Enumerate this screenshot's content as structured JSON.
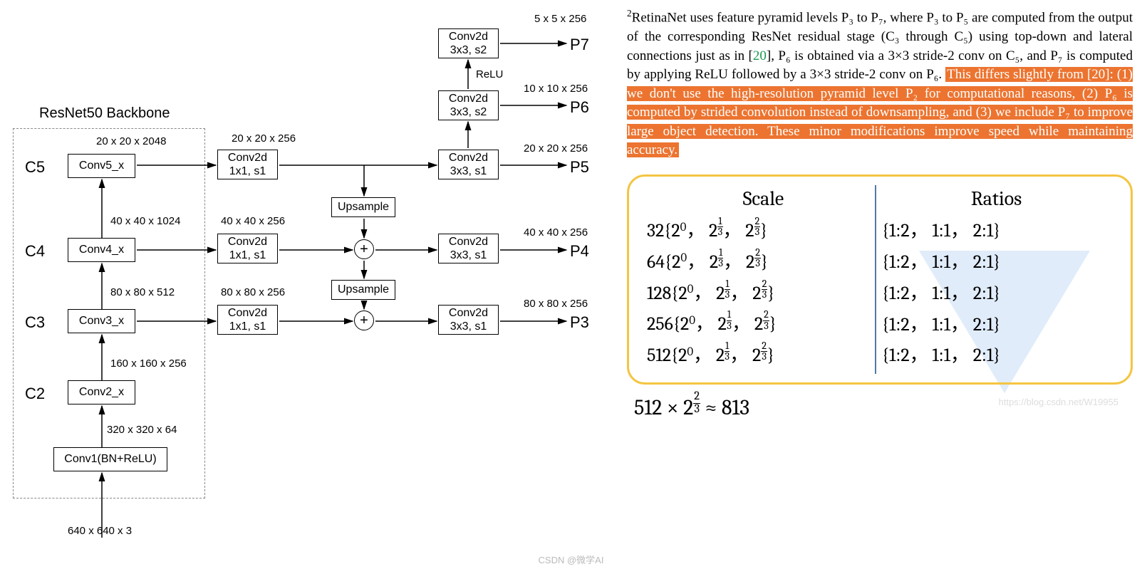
{
  "diagram": {
    "backbone_title": "ResNet50 Backbone",
    "input_dim": "640 x 640 x 3",
    "conv1": {
      "label": "Conv1(BN+ReLU)",
      "out": "320 x 320 x 64"
    },
    "c2": {
      "stage": "C2",
      "label": "Conv2_x",
      "out": "160 x 160 x 256"
    },
    "c3": {
      "stage": "C3",
      "label": "Conv3_x",
      "out": "80 x 80 x 512"
    },
    "c4": {
      "stage": "C4",
      "label": "Conv4_x",
      "out": "40 x 40 x 1024"
    },
    "c5": {
      "stage": "C5",
      "label": "Conv5_x",
      "out": "20 x 20 x 2048"
    },
    "lateral": {
      "label_l1": "Conv2d",
      "label_l2": "1x1, s1"
    },
    "lat3_out": "80 x 80 x 256",
    "lat4_out": "40 x 40 x 256",
    "lat5_out": "20 x 20 x 256",
    "upsample": "Upsample",
    "smooth": {
      "label_l1": "Conv2d",
      "label_l2": "3x3, s1"
    },
    "extra": {
      "label_l1": "Conv2d",
      "label_l2": "3x3, s2"
    },
    "relu": "ReLU",
    "p3": {
      "name": "P3",
      "dim": "80 x 80 x 256"
    },
    "p4": {
      "name": "P4",
      "dim": "40 x 40 x 256"
    },
    "p5": {
      "name": "P5",
      "dim": "20 x 20 x 256"
    },
    "p6": {
      "name": "P6",
      "dim": "10 x 10 x 256"
    },
    "p7": {
      "name": "P7",
      "dim": "5 x 5 x 256"
    },
    "colors": {
      "node_border": "#000000",
      "dashed_border": "#888888",
      "arrow": "#000000",
      "background": "#ffffff"
    }
  },
  "text": {
    "footnote_num": "2",
    "para_before": "RetinaNet uses feature pyramid levels P₃ to P₇, where P₃ to P₅ are computed from the output of the corresponding ResNet residual stage (C₃ through C₅) using top-down and lateral connections just as in [",
    "cite1": "20",
    "para_mid": "], P₆ is obtained via a 3×3 stride-2 conv on C₅, and P₇ is computed by applying ReLU followed by a 3×3 stride-2 conv on P₆. ",
    "highlight": "This differs slightly from [20]: (1) we don't use the high-resolution pyramid level P₂ for computational reasons, (2) P₆ is computed by strided convolution instead of downsampling, and (3) we include P₇ to improve large object detection. These minor modifications improve speed while maintaining accuracy.",
    "highlight_color": "#ec7430"
  },
  "table": {
    "header_scale": "Scale",
    "header_ratios": "Ratios",
    "border_color": "#f4c542",
    "divider_color": "#507aa6",
    "rows": [
      {
        "base": "32",
        "exps": [
          "0",
          "1/3",
          "2/3"
        ],
        "ratios": "{1:2，  1:1，  2:1}"
      },
      {
        "base": "64",
        "exps": [
          "0",
          "1/3",
          "2/3"
        ],
        "ratios": "{1:2，  1:1，  2:1}"
      },
      {
        "base": "128",
        "exps": [
          "0",
          "1/3",
          "2/3"
        ],
        "ratios": "{1:2，  1:1，  2:1}"
      },
      {
        "base": "256",
        "exps": [
          "0",
          "1/3",
          "2/3"
        ],
        "ratios": "{1:2，  1:1，  2:1}"
      },
      {
        "base": "512",
        "exps": [
          "0",
          "1/3",
          "2/3"
        ],
        "ratios": "{1:2，  1:1，  2:1}"
      }
    ],
    "equation": "512 × 2^{2/3} ≈ 813"
  },
  "watermark": {
    "csdn": "CSDN @微学AI",
    "url": "https://blog.csdn.net/W19955"
  }
}
